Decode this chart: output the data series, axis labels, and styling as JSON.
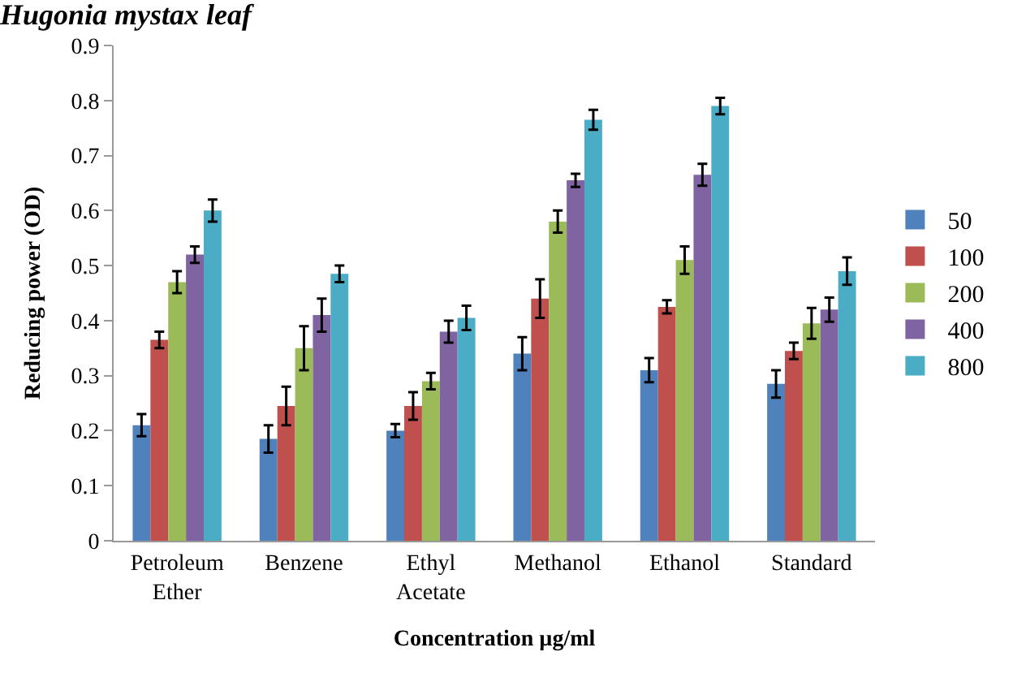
{
  "chart_data": {
    "type": "bar",
    "title": "Hugonia mystax leaf",
    "xlabel": "Concentration µg/ml",
    "ylabel": "Reducing power (OD)",
    "categories": [
      "Petroleum Ether",
      "Benzene",
      "Ethyl Acetate",
      "Methanol",
      "Ethanol",
      "Standard"
    ],
    "series": [
      {
        "name": "50",
        "color": "#4f81bd",
        "values": [
          0.21,
          0.185,
          0.2,
          0.34,
          0.31,
          0.285
        ],
        "errors": [
          0.02,
          0.025,
          0.012,
          0.03,
          0.022,
          0.025
        ]
      },
      {
        "name": "100",
        "color": "#c0504d",
        "values": [
          0.365,
          0.245,
          0.245,
          0.44,
          0.425,
          0.345
        ],
        "errors": [
          0.015,
          0.035,
          0.025,
          0.035,
          0.012,
          0.015
        ]
      },
      {
        "name": "200",
        "color": "#9bbb59",
        "values": [
          0.47,
          0.35,
          0.29,
          0.58,
          0.51,
          0.395
        ],
        "errors": [
          0.02,
          0.04,
          0.015,
          0.02,
          0.025,
          0.028
        ]
      },
      {
        "name": "400",
        "color": "#8064a2",
        "values": [
          0.52,
          0.41,
          0.38,
          0.655,
          0.665,
          0.42
        ],
        "errors": [
          0.015,
          0.03,
          0.02,
          0.012,
          0.02,
          0.022
        ]
      },
      {
        "name": "800",
        "color": "#4bacc6",
        "values": [
          0.6,
          0.485,
          0.405,
          0.765,
          0.79,
          0.49
        ],
        "errors": [
          0.02,
          0.015,
          0.022,
          0.018,
          0.015,
          0.025
        ]
      }
    ],
    "ylim": [
      0,
      0.9
    ],
    "yticks": [
      0,
      0.1,
      0.2,
      0.3,
      0.4,
      0.5,
      0.6,
      0.7,
      0.8,
      0.9
    ],
    "legend": "right"
  }
}
